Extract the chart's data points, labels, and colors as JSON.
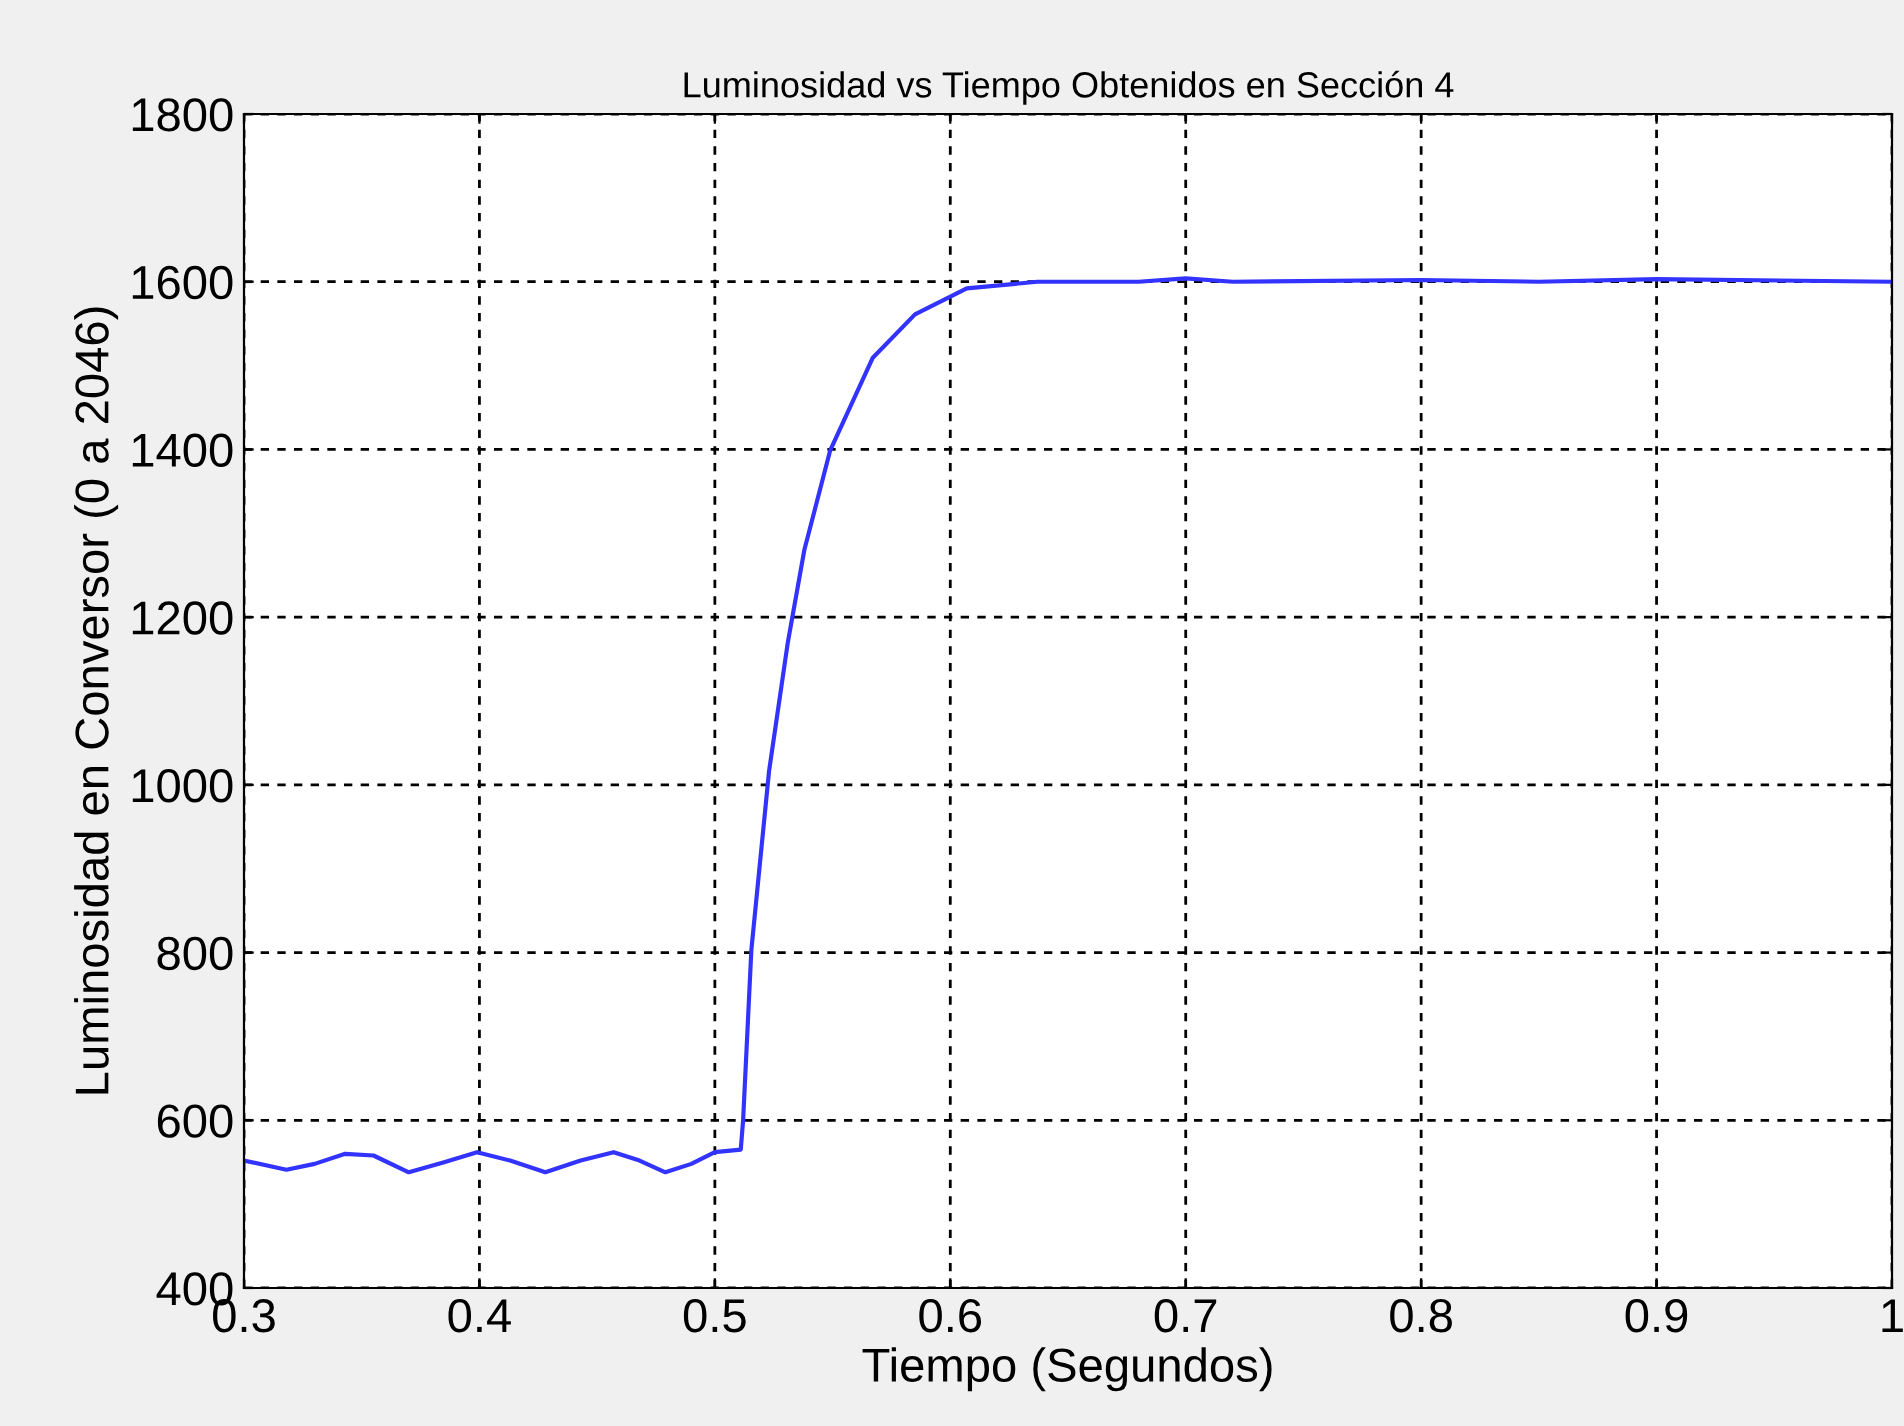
{
  "chart_data": {
    "type": "line",
    "title": "Luminosidad vs Tiempo Obtenidos en Sección 4",
    "xlabel": "Tiempo (Segundos)",
    "ylabel": "Luminosidad en Conversor (0 a 2046)",
    "series": [
      {
        "color": "#3333ff",
        "x": [
          0.3,
          0.318,
          0.33,
          0.343,
          0.355,
          0.37,
          0.385,
          0.399,
          0.413,
          0.428,
          0.443,
          0.457,
          0.468,
          0.479,
          0.49,
          0.5,
          0.511,
          0.512,
          0.5155,
          0.523,
          0.531,
          0.538,
          0.549,
          0.567,
          0.585,
          0.607,
          0.637,
          0.68,
          0.7,
          0.72,
          0.8,
          0.85,
          0.9,
          1.0
        ],
        "values": [
          552,
          541,
          548,
          560,
          558,
          538,
          550,
          562,
          552,
          538,
          552,
          562,
          552,
          538,
          548,
          562,
          565,
          600,
          803,
          1016,
          1170,
          1280,
          1399,
          1509,
          1561,
          1592,
          1600,
          1600,
          1604,
          1600,
          1602,
          1600,
          1603,
          1600
        ]
      }
    ],
    "xlim": [
      0.3,
      1.0
    ],
    "xticks": [
      0.3,
      0.4,
      0.5,
      0.6,
      0.7,
      0.8,
      0.9,
      1
    ],
    "ylim": [
      400,
      1800
    ],
    "yticks": [
      400,
      600,
      800,
      1000,
      1200,
      1400,
      1600,
      1800
    ],
    "grid": true,
    "line_style": "solid"
  }
}
